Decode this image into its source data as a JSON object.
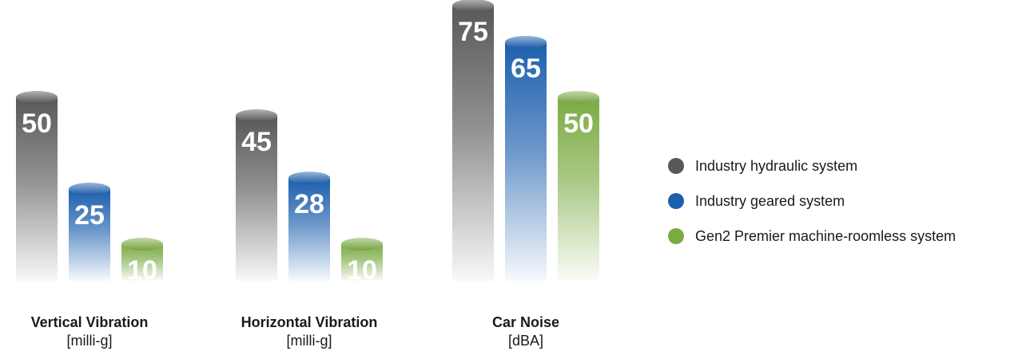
{
  "chart_data": {
    "type": "bar",
    "categories": [
      "Vertical Vibration",
      "Horizontal Vibration",
      "Car Noise"
    ],
    "units": [
      "[milli-g]",
      "[milli-g]",
      "[dBA]"
    ],
    "series": [
      {
        "name": "Industry hydraulic system",
        "values": [
          50,
          45,
          75
        ],
        "color": "#58585a"
      },
      {
        "name": "Industry geared system",
        "values": [
          25,
          28,
          65
        ],
        "color": "#1c5fae"
      },
      {
        "name": "Gen2 Premier machine-roomless system",
        "values": [
          10,
          10,
          50
        ],
        "color": "#7aab43"
      }
    ],
    "legend_position": "right",
    "grid": false,
    "value_labels": true
  }
}
